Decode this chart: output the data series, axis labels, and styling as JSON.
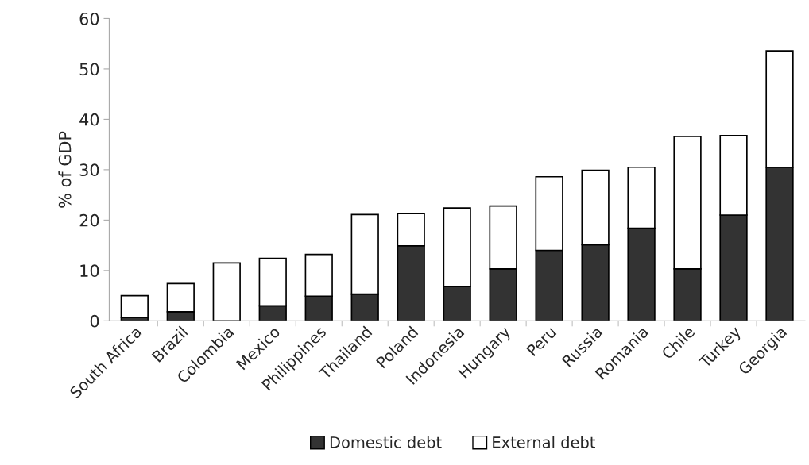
{
  "chart_data": {
    "type": "bar",
    "stacked": true,
    "ylabel": "% of GDP",
    "categories": [
      "South Africa",
      "Brazil",
      "Colombia",
      "Mexico",
      "Philippines",
      "Thailand",
      "Poland",
      "Indonesia",
      "Hungary",
      "Peru",
      "Russia",
      "Romania",
      "Chile",
      "Turkey",
      "Georgia"
    ],
    "series": [
      {
        "name": "Domestic debt",
        "color": "#333333",
        "values": [
          0.7,
          1.8,
          0,
          3.0,
          4.9,
          5.3,
          14.9,
          6.8,
          10.3,
          14.0,
          15.1,
          18.4,
          10.3,
          21.0,
          30.5
        ]
      },
      {
        "name": "External debt",
        "color": "#ffffff",
        "values": [
          4.3,
          5.6,
          11.5,
          9.4,
          8.3,
          15.8,
          6.4,
          15.6,
          12.5,
          14.6,
          14.8,
          12.1,
          26.3,
          15.8,
          23.1
        ]
      }
    ],
    "ylim": [
      0,
      60
    ],
    "yticks": [
      0,
      10,
      20,
      30,
      40,
      50,
      60
    ],
    "grid": false,
    "legend": "bottom"
  }
}
